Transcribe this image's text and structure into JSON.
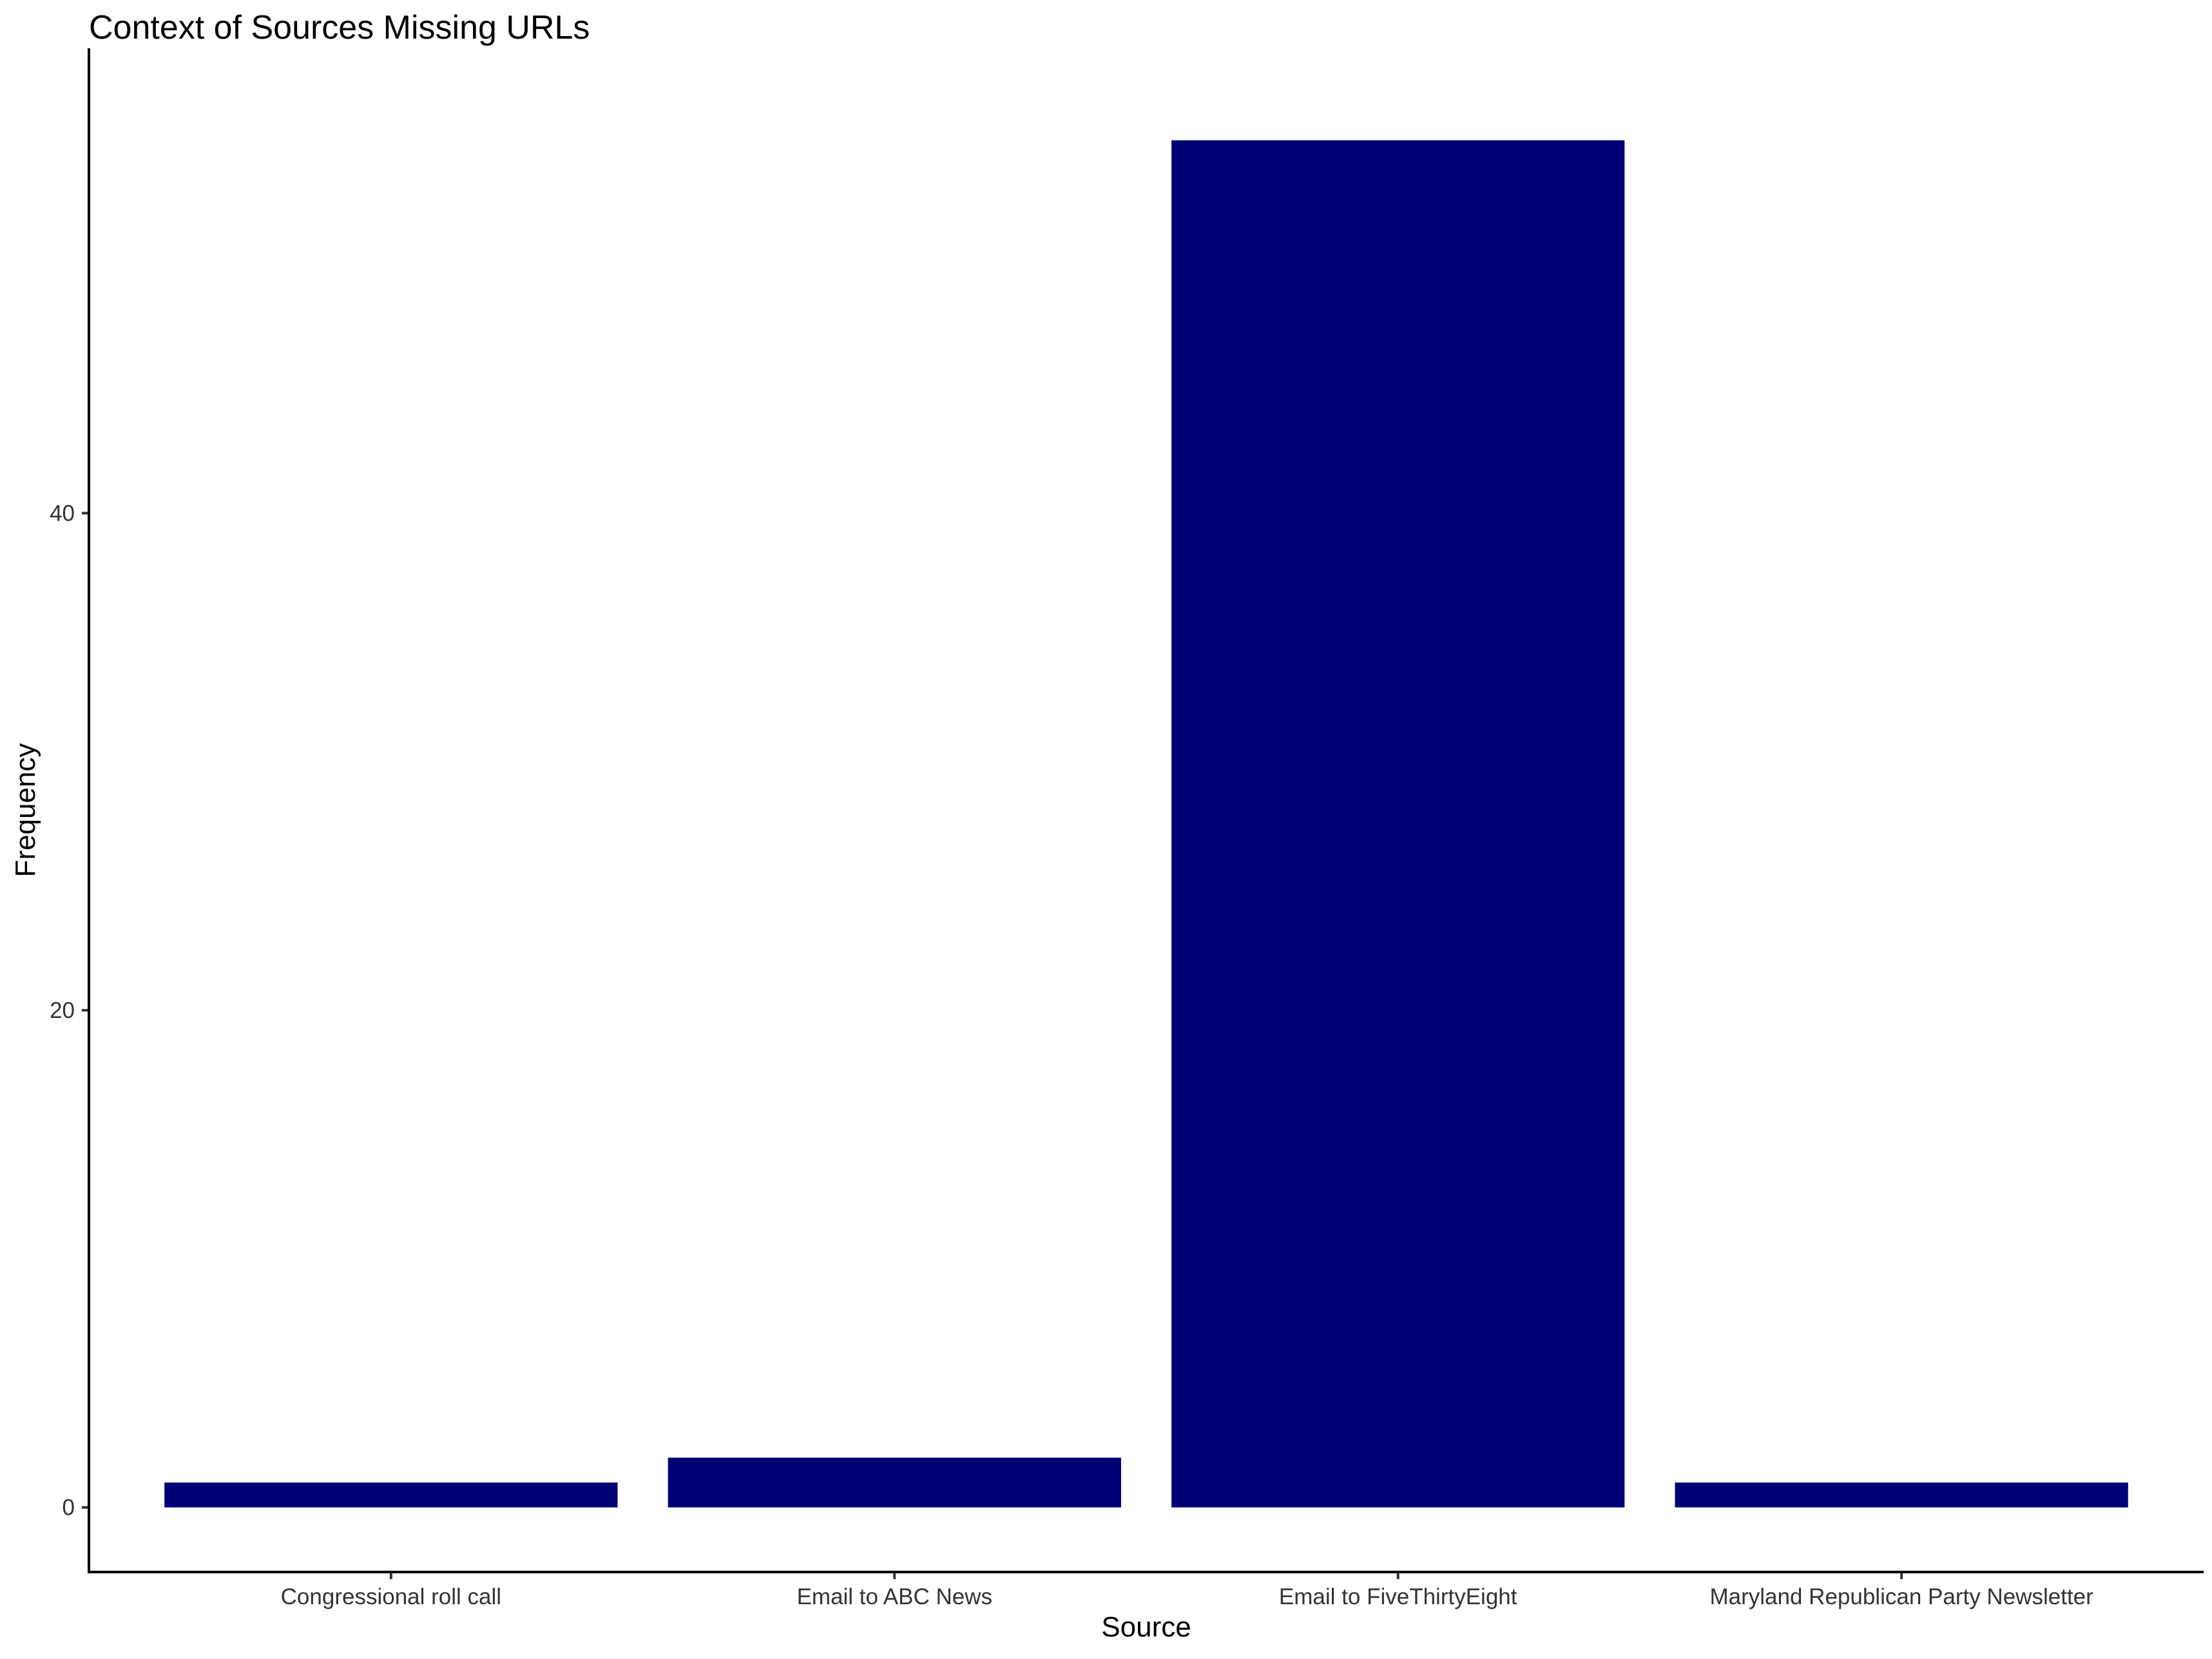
{
  "chart_data": {
    "type": "bar",
    "title": "Context of Sources Missing URLs",
    "xlabel": "Source",
    "ylabel": "Frequency",
    "categories": [
      "Congressional roll call",
      "Email to ABC News",
      "Email to FiveThirtyEight",
      "Maryland Republican Party Newsletter"
    ],
    "values": [
      1,
      2,
      55,
      1
    ],
    "yticks": [
      0,
      20,
      40
    ],
    "ylim": [
      -2.6,
      58.7
    ],
    "bar_color": "#000075",
    "grid": false,
    "legend": "none"
  }
}
